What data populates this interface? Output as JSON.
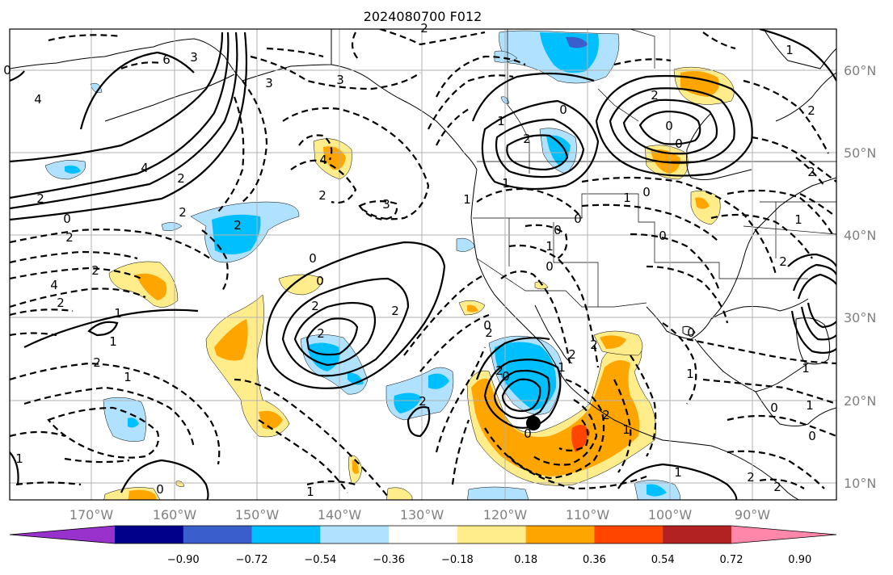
{
  "title": "2024080700 F012",
  "lat_labels": [
    "60°N",
    "50°N",
    "40°N",
    "30°N",
    "20°N",
    "10°N"
  ],
  "lon_labels": [
    "170°W",
    "160°W",
    "150°W",
    "140°W",
    "130°W",
    "120°W",
    "110°W",
    "100°W",
    "90°W"
  ],
  "colorbar": {
    "colors": [
      "#9932cc",
      "#00008b",
      "#3a5fcd",
      "#00bfff",
      "#b0e2ff",
      "#ffffff",
      "#ffec8b",
      "#ffa500",
      "#ff4500",
      "#b22222",
      "#ff88aa"
    ],
    "tick_labels": [
      "−0.90",
      "−0.72",
      "−0.54",
      "−0.36",
      "−0.18",
      "0.18",
      "0.36",
      "0.54",
      "0.72",
      "0.90"
    ]
  },
  "contour_labels": [
    "6",
    "3",
    "4",
    "3",
    "3",
    "4",
    "2",
    "2",
    "4",
    "2",
    "2",
    "3",
    "2",
    "0",
    "2",
    "2",
    "4",
    "2",
    "1",
    "1",
    "2",
    "1",
    "0",
    "0",
    "2",
    "2",
    "2",
    "1",
    "1",
    "0",
    "1",
    "2",
    "1",
    "2",
    "1",
    "0",
    "0",
    "0",
    "2",
    "1",
    "1",
    "0",
    "2",
    "2",
    "1",
    "1",
    "2",
    "0",
    "0",
    "2",
    "2",
    "1",
    "0",
    "1",
    "2",
    "1",
    "2",
    "1",
    "0",
    "2",
    "0",
    "0",
    "0",
    "0",
    "1",
    "2",
    "0",
    "2",
    "2",
    "1",
    "0",
    "0"
  ],
  "marker": "storm-center-dot"
}
